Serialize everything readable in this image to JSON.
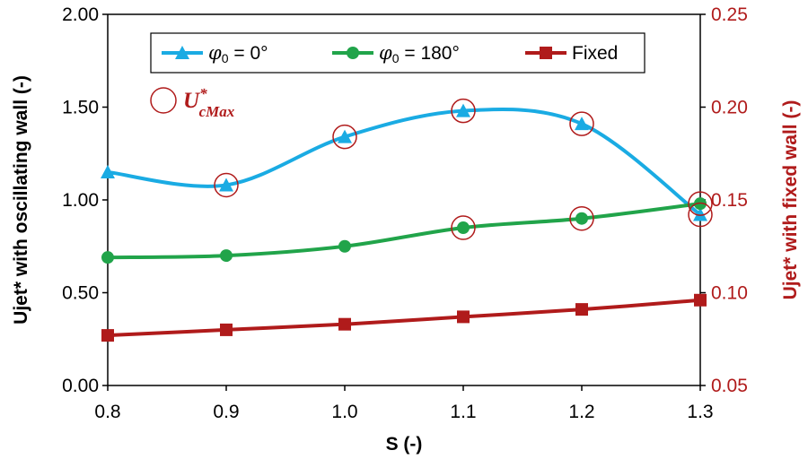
{
  "chart_data": {
    "type": "line",
    "xlabel": "S (-)",
    "ylabel_left": "Ujet* with oscillating wall (-)",
    "ylabel_right": "Ujet* with fixed wall (-)",
    "xlim": [
      0.8,
      1.3
    ],
    "ylim_left": [
      0.0,
      2.0
    ],
    "ylim_right": [
      0.05,
      0.25
    ],
    "x_ticks": [
      "0.8",
      "0.9",
      "1.0",
      "1.1",
      "1.2",
      "1.3"
    ],
    "y_left_ticks": [
      "0.00",
      "0.50",
      "1.00",
      "1.50",
      "2.00"
    ],
    "y_right_ticks": [
      "0.05",
      "0.10",
      "0.15",
      "0.20",
      "0.25"
    ],
    "x": [
      0.8,
      0.9,
      1.0,
      1.1,
      1.2,
      1.3
    ],
    "series": [
      {
        "name": "phi0-0",
        "legend_symbol": "φ",
        "legend_subscript": "0",
        "legend_rest": " = 0°",
        "axis": "left",
        "marker": "triangle",
        "color": "#1aabe3",
        "values": [
          1.15,
          1.08,
          1.34,
          1.48,
          1.41,
          0.92
        ]
      },
      {
        "name": "phi0-180",
        "legend_symbol": "φ",
        "legend_subscript": "0",
        "legend_rest": " = 180°",
        "axis": "left",
        "marker": "circle",
        "color": "#21a44a",
        "values": [
          0.69,
          0.7,
          0.75,
          0.85,
          0.9,
          0.98
        ]
      },
      {
        "name": "fixed",
        "legend_label": "Fixed",
        "axis": "right",
        "marker": "square",
        "color": "#b01b1b",
        "values": [
          0.077,
          0.08,
          0.083,
          0.087,
          0.091,
          0.096
        ]
      }
    ],
    "max_markers": {
      "label_main": "U",
      "label_sup": "*",
      "label_sub": "cMax",
      "color": "#b01b1b",
      "points": [
        {
          "series": "phi0-0",
          "x": 0.9
        },
        {
          "series": "phi0-0",
          "x": 1.0
        },
        {
          "series": "phi0-0",
          "x": 1.1
        },
        {
          "series": "phi0-0",
          "x": 1.2
        },
        {
          "series": "phi0-0",
          "x": 1.3
        },
        {
          "series": "phi0-180",
          "x": 1.1
        },
        {
          "series": "phi0-180",
          "x": 1.2
        },
        {
          "series": "phi0-180",
          "x": 1.3
        }
      ]
    },
    "colors": {
      "right_axis": "#b01b1b",
      "axis_line": "#000000",
      "legend_border": "#000000"
    }
  }
}
